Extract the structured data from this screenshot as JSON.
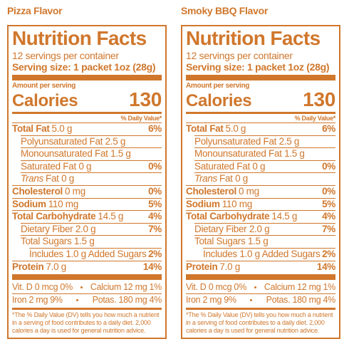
{
  "panels": [
    {
      "flavor": "Pizza Flavor",
      "title": "Nutrition Facts",
      "servings": "12 servings per container",
      "serving_size": "Serving size: 1 packet 1oz (28g)",
      "amount_per_serving": "Amount per serving",
      "calories_label": "Calories",
      "calories": 130,
      "dv_header": "% Daily Value*",
      "rows": [
        {
          "name": "Total Fat",
          "amount": "5.0 g",
          "dv": "6%"
        },
        {
          "label": "Polyunsaturated Fat 2.5 g"
        },
        {
          "label": "Monounsaturated Fat 1.5 g"
        },
        {
          "label": "Saturated Fat 0 g",
          "dv": "0%"
        },
        {
          "italic": "Trans",
          "label": "Fat 0 g"
        },
        {
          "name": "Cholesterol",
          "amount": "0 mg",
          "dv": "0%"
        },
        {
          "name": "Sodium",
          "amount": "110 mg",
          "dv": "5%"
        },
        {
          "name": "Total Carbohydrate",
          "amount": "14.5 g",
          "dv": "4%"
        },
        {
          "label": "Dietary Fiber 2.0 g",
          "dv": "7%"
        },
        {
          "label": "Total Sugars 1.5 g"
        },
        {
          "label": "Includes 1.0 g Added Sugars",
          "dv": "2%"
        },
        {
          "name": "Protein",
          "amount": "7.0 g",
          "dv": "14%"
        }
      ],
      "minerals": [
        [
          "Vit. D 0 mcg 0%",
          "Calcium 12 mg 1%"
        ],
        [
          "Iron 2 mg 9%",
          "Potas. 180 mg 4%"
        ]
      ],
      "footnote": "*The % Daily Value (DV) tells you how much a nutrient in a serving of food contributes to a daily diet. 2,000 calories a day is used for general nutrition advice."
    },
    {
      "flavor": "Smoky BBQ Flavor",
      "title": "Nutrition Facts",
      "servings": "12 servings per container",
      "serving_size": "Serving size: 1 packet 1oz (28g)",
      "amount_per_serving": "Amount per serving",
      "calories_label": "Calories",
      "calories": 130,
      "dv_header": "% Daily Value*",
      "rows": [
        {
          "name": "Total Fat",
          "amount": "5.0 g",
          "dv": "6%"
        },
        {
          "label": "Polyunsaturated Fat 2.5 g"
        },
        {
          "label": "Monounsaturated Fat 1.5 g"
        },
        {
          "label": "Saturated Fat 0 g",
          "dv": "0%"
        },
        {
          "italic": "Trans",
          "label": "Fat 0 g"
        },
        {
          "name": "Cholesterol",
          "amount": "0 mg",
          "dv": "0%"
        },
        {
          "name": "Sodium",
          "amount": "110 mg",
          "dv": "5%"
        },
        {
          "name": "Total Carbohydrate",
          "amount": "14.5 g",
          "dv": "4%"
        },
        {
          "label": "Dietary Fiber 2.0 g",
          "dv": "7%"
        },
        {
          "label": "Total Sugars 1.5 g"
        },
        {
          "label": "Includes 1.0 g Added Sugars",
          "dv": "2%"
        },
        {
          "name": "Protein",
          "amount": "7.0 g",
          "dv": "14%"
        }
      ],
      "minerals": [
        [
          "Vit. D 0 mcg 0%",
          "Calcium 12 mg 1%"
        ],
        [
          "Iron 2 mg 9%",
          "Potas. 180 mg 4%"
        ]
      ],
      "footnote": "*The % Daily Value (DV) tells you how much a nutrient in a serving of food contributes to a daily diet. 2,000 calories a day is used for general nutrition advice."
    }
  ]
}
